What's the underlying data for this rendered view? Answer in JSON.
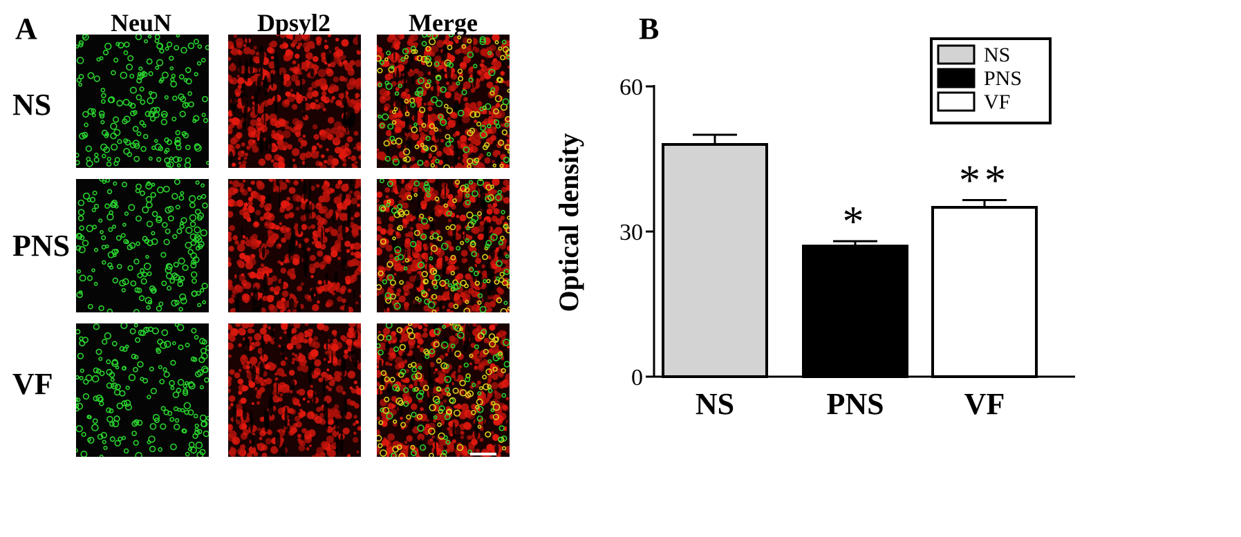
{
  "panel_a": {
    "letter": "A",
    "columns": [
      "NeuN",
      "Dpsyl2",
      "Merge"
    ],
    "rows": [
      "NS",
      "PNS",
      "VF"
    ],
    "colors": {
      "neun": "#29d32e",
      "dpsyl2": "#e3190f",
      "merge_overlap": "#d7d21a",
      "background": "#000000"
    }
  },
  "panel_b": {
    "letter": "B"
  },
  "chart_data": {
    "type": "bar",
    "categories": [
      "NS",
      "PNS",
      "VF"
    ],
    "values": [
      48,
      27,
      35
    ],
    "errors": [
      2,
      1,
      1.5
    ],
    "significance": [
      "",
      "*",
      "**"
    ],
    "ylabel": "Optical density",
    "xlabel": "",
    "ylim": [
      0,
      60
    ],
    "yticks": [
      0,
      30,
      60
    ],
    "bar_fills": [
      "#d3d3d3",
      "#000000",
      "#ffffff"
    ],
    "legend": {
      "placement": "top-right",
      "entries": [
        "NS",
        "PNS",
        "VF"
      ]
    },
    "grid": false
  }
}
